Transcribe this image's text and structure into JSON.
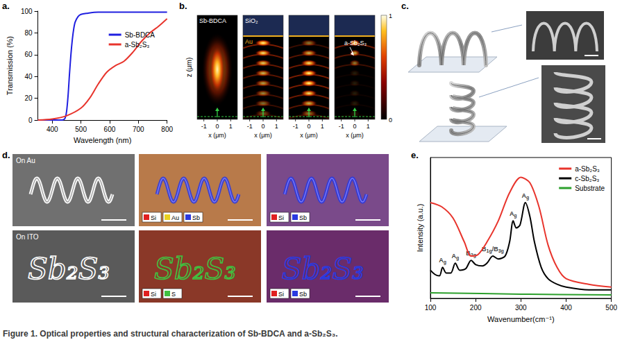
{
  "panel_labels": [
    "a.",
    "b.",
    "c.",
    "d.",
    "e."
  ],
  "chart_data": [
    {
      "type": "line",
      "x_label": "Wavelength (nm)",
      "y_label": "Transmission (%)",
      "xlim": [
        350,
        800
      ],
      "xticks": [
        400,
        500,
        600,
        700,
        800
      ],
      "ylim": [
        0,
        100
      ],
      "yticks": [
        0,
        20,
        40,
        60,
        80,
        100
      ],
      "grid": false,
      "legend": "upper right",
      "series": [
        {
          "name": "Sb-BDCA",
          "color": "#1f1fe0",
          "x": [
            350,
            400,
            430,
            440,
            445,
            450,
            455,
            460,
            465,
            470,
            475,
            480,
            490,
            500,
            520,
            560,
            600,
            700,
            800
          ],
          "values": [
            0,
            0,
            0,
            0.5,
            2,
            8,
            22,
            42,
            60,
            74,
            84,
            90,
            95,
            97,
            98,
            99,
            99,
            99,
            99
          ]
        },
        {
          "name": "a-Sb₂S₃",
          "color": "#e8342c",
          "x": [
            350,
            400,
            450,
            500,
            530,
            560,
            590,
            620,
            650,
            680,
            710,
            740,
            770,
            800
          ],
          "values": [
            0,
            1,
            4,
            11,
            20,
            33,
            44,
            50,
            54,
            62,
            72,
            80,
            86,
            93
          ]
        }
      ]
    },
    {
      "type": "line",
      "x_label": "Wavenumber(cm⁻¹)",
      "y_label": "Intensity (a.u.)",
      "xlim": [
        100,
        500
      ],
      "xticks": [
        100,
        200,
        300,
        400,
        500
      ],
      "ylim": [
        0,
        100
      ],
      "grid": false,
      "legend": "upper right",
      "tick_labels": "x",
      "series": [
        {
          "name": "a-Sb₂S₃",
          "color": "#e8342c",
          "x": [
            100,
            125,
            150,
            175,
            190,
            205,
            225,
            250,
            275,
            300,
            320,
            340,
            360,
            380,
            400,
            450,
            500
          ],
          "values": [
            68,
            65,
            57,
            40,
            30,
            31,
            40,
            55,
            75,
            86,
            82,
            65,
            38,
            22,
            14,
            10,
            8
          ]
        },
        {
          "name": "c-Sb₂S₃",
          "color": "#000000",
          "x": [
            100,
            110,
            120,
            127,
            135,
            145,
            155,
            165,
            178,
            190,
            200,
            215,
            225,
            238,
            250,
            265,
            275,
            283,
            290,
            298,
            310,
            320,
            330,
            345,
            360,
            380,
            400,
            450,
            500
          ],
          "values": [
            20,
            17,
            16,
            22,
            18,
            18,
            25,
            20,
            21,
            27,
            24,
            23,
            25,
            30,
            28,
            30,
            40,
            55,
            50,
            52,
            68,
            58,
            40,
            22,
            14,
            10,
            8,
            6,
            6
          ],
          "annotations": [
            {
              "x": 127,
              "text": "Ag"
            },
            {
              "x": 155,
              "text": "Ag"
            },
            {
              "x": 190,
              "text": "B2g"
            },
            {
              "x": 238,
              "text": "B1g/B3g"
            },
            {
              "x": 283,
              "text": "Ag"
            },
            {
              "x": 310,
              "text": "Ag"
            }
          ]
        },
        {
          "name": "Substrate",
          "color": "#2ca02c",
          "x": [
            100,
            300,
            500
          ],
          "values": [
            4,
            3,
            2.5
          ]
        }
      ]
    }
  ],
  "field_maps": {
    "x_label": "x (μm)",
    "y_label": "z (μm)",
    "xlim": [
      -1.5,
      1.5
    ],
    "xticks": [
      -1,
      0,
      1
    ],
    "maps": [
      {
        "label": "Sb-BDCA"
      },
      {
        "label": "SiO₂",
        "boundary_label": "Au"
      },
      {},
      {
        "label": "a-Sb₂S₃"
      }
    ],
    "colorbar": {
      "range": [
        0,
        1
      ],
      "ticks": [
        0,
        1
      ]
    }
  },
  "eds": {
    "rows": [
      {
        "label": "On Au",
        "maps": [
          {
            "elements": [
              {
                "name": "Si",
                "color": "#e02020"
              },
              {
                "name": "Au",
                "color": "#e8d020"
              },
              {
                "name": "Sb",
                "color": "#2a3ae0"
              }
            ]
          },
          {
            "elements": [
              {
                "name": "Si",
                "color": "#e02020"
              },
              {
                "name": "Sb",
                "color": "#2a3ae0"
              }
            ]
          }
        ]
      },
      {
        "label": "On ITO",
        "pattern_text": "Sb₂S₃",
        "maps": [
          {
            "elements": [
              {
                "name": "Si",
                "color": "#e02020"
              },
              {
                "name": "S",
                "color": "#40c040"
              }
            ]
          },
          {
            "elements": [
              {
                "name": "Si",
                "color": "#e02020"
              },
              {
                "name": "Sb",
                "color": "#2a3ae0"
              }
            ]
          }
        ]
      }
    ]
  },
  "caption": "Figure 1. Optical properties and structural characterization of Sb-BDCA and a-Sb₂S₃."
}
